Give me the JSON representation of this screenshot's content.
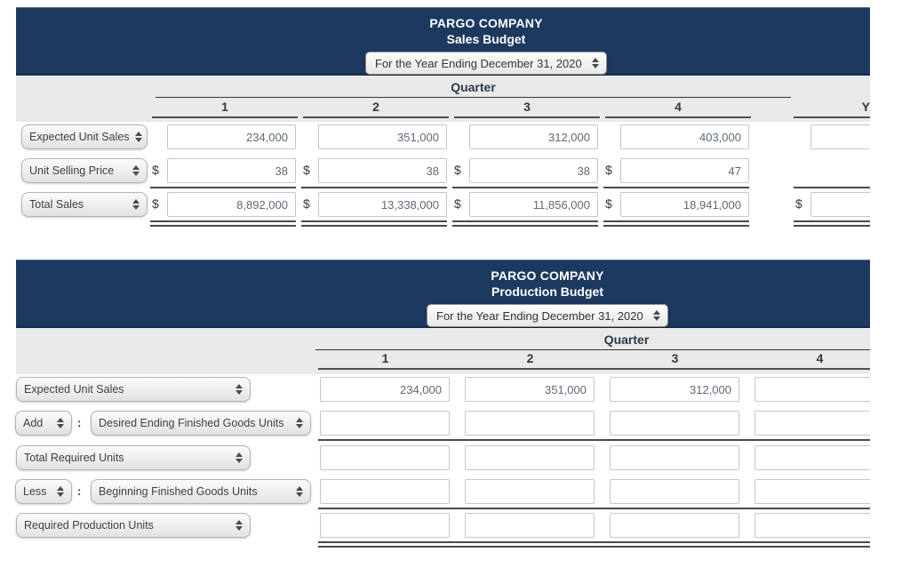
{
  "ui": {
    "colon": ":",
    "currency": "$"
  },
  "theme": {
    "banner_bg": "#1c3960",
    "band_bg": "#e9e9e9",
    "rule_color": "#4a4a4a",
    "header_text": "#2c3a47"
  },
  "sales_budget": {
    "company": "PARGO COMPANY",
    "title": "Sales Budget",
    "period_selected": "For the Year Ending December 31, 2020",
    "group_header": "Quarter",
    "columns": [
      "1",
      "2",
      "3",
      "4",
      "Y"
    ],
    "rows": [
      {
        "label": "Expected Unit Sales",
        "dollar": false,
        "values": [
          "234,000",
          "351,000",
          "312,000",
          "403,000",
          ""
        ],
        "rule_below": null
      },
      {
        "label": "Unit Selling Price",
        "dollar": true,
        "values": [
          "38",
          "38",
          "38",
          "47",
          null
        ],
        "rule_below": "single"
      },
      {
        "label": "Total Sales",
        "dollar": true,
        "values": [
          "8,892,000",
          "13,338,000",
          "11,856,000",
          "18,941,000",
          ""
        ],
        "rule_below": "double"
      }
    ]
  },
  "production_budget": {
    "company": "PARGO COMPANY",
    "title": "Production Budget",
    "period_selected": "For the Year Ending December 31, 2020",
    "group_header": "Quarter",
    "columns": [
      "1",
      "2",
      "3",
      "4"
    ],
    "rows": [
      {
        "label": "Expected Unit Sales",
        "values": [
          "234,000",
          "351,000",
          "312,000",
          ""
        ],
        "rule_below": null
      },
      {
        "prefix": "Add",
        "label": "Desired Ending Finished Goods Units",
        "values": [
          "",
          "",
          "",
          ""
        ],
        "rule_below": "single"
      },
      {
        "label": "Total Required Units",
        "values": [
          "",
          "",
          "",
          ""
        ],
        "rule_below": null
      },
      {
        "prefix": "Less",
        "label": "Beginning Finished Goods Units",
        "values": [
          "",
          "",
          "",
          ""
        ],
        "rule_below": "single"
      },
      {
        "label": "Required Production Units",
        "values": [
          "",
          "",
          "",
          ""
        ],
        "rule_below": "double"
      }
    ]
  }
}
